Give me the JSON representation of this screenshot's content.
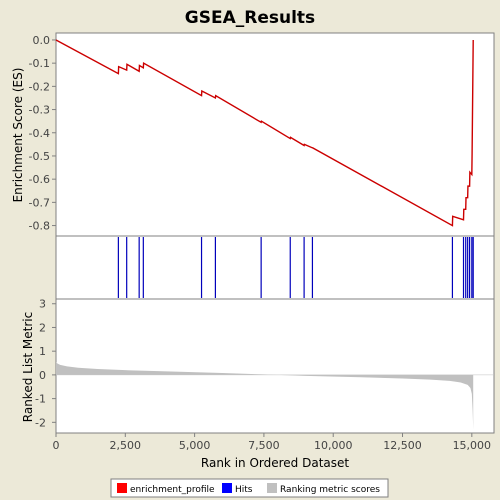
{
  "chart_data": {
    "type": "line",
    "title": "GSEA_Results",
    "panels": {
      "es": {
        "ylabel": "Enrichment Score (ES)",
        "ylim": [
          -0.845,
          0.03
        ],
        "yticks": [
          0.0,
          -0.1,
          -0.2,
          -0.3,
          -0.4,
          -0.5,
          -0.6,
          -0.7,
          -0.8
        ],
        "ytick_labels": [
          "0.0",
          "-0.1",
          "-0.2",
          "-0.3",
          "-0.4",
          "-0.5",
          "-0.6",
          "-0.7",
          "-0.8"
        ],
        "series_name": "enrichment_profile",
        "color": "#cc0000",
        "x": [
          0,
          2250,
          2260,
          2550,
          2560,
          3000,
          3010,
          3150,
          3160,
          5250,
          5260,
          5750,
          5760,
          7400,
          7410,
          8450,
          8460,
          8950,
          8960,
          9250,
          9260,
          14300,
          14310,
          14700,
          14710,
          14780,
          14790,
          14850,
          14860,
          14920,
          14930,
          15000,
          15010,
          15050
        ],
        "y": [
          0.0,
          -0.145,
          -0.115,
          -0.13,
          -0.105,
          -0.135,
          -0.11,
          -0.12,
          -0.1,
          -0.24,
          -0.22,
          -0.25,
          -0.24,
          -0.355,
          -0.35,
          -0.425,
          -0.42,
          -0.455,
          -0.45,
          -0.465,
          -0.465,
          -0.8,
          -0.76,
          -0.775,
          -0.73,
          -0.73,
          -0.68,
          -0.68,
          -0.63,
          -0.63,
          -0.57,
          -0.58,
          -0.49,
          0.0
        ]
      },
      "hits": {
        "series_name": "Hits",
        "color": "#0000bb",
        "positions": [
          2250,
          2550,
          3000,
          3150,
          5250,
          5750,
          7400,
          8450,
          8950,
          9250,
          14300,
          14700,
          14780,
          14850,
          14920,
          15000,
          15050
        ]
      },
      "metric": {
        "ylabel": "Ranked List Metric",
        "ylim": [
          -2.45,
          3.2
        ],
        "yticks": [
          3,
          2,
          1,
          0,
          -1,
          -2
        ],
        "ytick_labels": [
          "3",
          "2",
          "1",
          "0",
          "-1",
          "-2"
        ],
        "series_name": "Ranking metric scores",
        "color": "#c0c0c0",
        "x": [
          0,
          50,
          150,
          400,
          800,
          1500,
          2500,
          4000,
          6000,
          7500,
          9000,
          11000,
          12500,
          13500,
          14200,
          14600,
          14850,
          14950,
          15000,
          15030,
          15050
        ],
        "y": [
          0.55,
          0.48,
          0.42,
          0.36,
          0.3,
          0.25,
          0.2,
          0.15,
          0.08,
          0.02,
          -0.04,
          -0.1,
          -0.15,
          -0.2,
          -0.25,
          -0.32,
          -0.42,
          -0.55,
          -0.8,
          -1.5,
          -2.3
        ]
      }
    },
    "xlabel": "Rank in Ordered Dataset",
    "xlim": [
      0,
      15800
    ],
    "xticks": [
      0,
      2500,
      5000,
      7500,
      10000,
      12500,
      15000
    ],
    "xtick_labels": [
      "0",
      "2,500",
      "5,000",
      "7,500",
      "10,000",
      "12,500",
      "15,000"
    ],
    "legend": {
      "placement": "bottom",
      "entries": [
        {
          "label": "enrichment_profile",
          "color": "#ff0000"
        },
        {
          "label": "Hits",
          "color": "#0000ff"
        },
        {
          "label": "Ranking metric scores",
          "color": "#c0c0c0"
        }
      ]
    },
    "grid": false
  }
}
